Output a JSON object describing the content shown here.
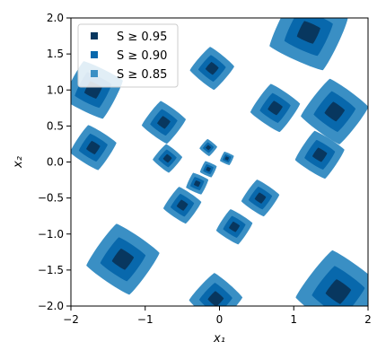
{
  "chart_data": {
    "type": "scatter",
    "title": "",
    "xlabel": "x₁",
    "ylabel": "x₂",
    "xlim": [
      -2,
      2
    ],
    "ylim": [
      -2,
      2
    ],
    "xticks": [
      -2,
      -1,
      0,
      1,
      2
    ],
    "yticks": [
      -2.0,
      -1.5,
      -1.0,
      -0.5,
      0.0,
      0.5,
      1.0,
      1.5,
      2.0
    ],
    "xtick_labels": [
      "−2",
      "−1",
      "0",
      "1",
      "2"
    ],
    "ytick_labels": [
      "−2.0",
      "−1.5",
      "−1.0",
      "−0.5",
      "0.0",
      "0.5",
      "1.0",
      "1.5",
      "2.0"
    ],
    "grid": false,
    "legend_position": "top-left",
    "levels": [
      {
        "label": "S ≥ 0.85",
        "threshold": 0.85,
        "color": "#3a8fc4",
        "scale": 1.0
      },
      {
        "label": "S ≥ 0.90",
        "threshold": 0.9,
        "color": "#0868ac",
        "scale": 0.62
      },
      {
        "label": "S ≥ 0.95",
        "threshold": 0.95,
        "color": "#08375f",
        "scale": 0.3
      }
    ],
    "legend_order": [
      2,
      1,
      0
    ],
    "peaks": [
      {
        "x": -1.7,
        "y": 1.0,
        "r": 0.42,
        "rot": 18
      },
      {
        "x": -1.7,
        "y": 0.2,
        "r": 0.32,
        "rot": 12
      },
      {
        "x": -1.3,
        "y": -1.35,
        "r": 0.5,
        "rot": 10
      },
      {
        "x": -0.75,
        "y": 0.55,
        "r": 0.3,
        "rot": 8
      },
      {
        "x": -0.7,
        "y": 0.05,
        "r": 0.2,
        "rot": 5
      },
      {
        "x": -0.5,
        "y": -0.6,
        "r": 0.26,
        "rot": 10
      },
      {
        "x": -0.3,
        "y": -0.3,
        "r": 0.16,
        "rot": 20
      },
      {
        "x": -0.15,
        "y": 0.2,
        "r": 0.12,
        "rot": 5
      },
      {
        "x": -0.15,
        "y": -0.1,
        "r": 0.12,
        "rot": 20
      },
      {
        "x": 0.1,
        "y": 0.05,
        "r": 0.1,
        "rot": 20
      },
      {
        "x": -0.1,
        "y": 1.3,
        "r": 0.3,
        "rot": 5
      },
      {
        "x": -0.05,
        "y": -1.9,
        "r": 0.36,
        "rot": 3
      },
      {
        "x": 0.2,
        "y": -0.9,
        "r": 0.25,
        "rot": 12
      },
      {
        "x": 0.55,
        "y": -0.5,
        "r": 0.26,
        "rot": 10
      },
      {
        "x": 0.75,
        "y": 0.75,
        "r": 0.34,
        "rot": 10
      },
      {
        "x": 1.2,
        "y": 1.8,
        "r": 0.56,
        "rot": 20
      },
      {
        "x": 1.35,
        "y": 0.1,
        "r": 0.34,
        "rot": 12
      },
      {
        "x": 1.55,
        "y": 0.7,
        "r": 0.46,
        "rot": 8
      },
      {
        "x": 1.6,
        "y": -1.8,
        "r": 0.58,
        "rot": 8
      }
    ]
  }
}
